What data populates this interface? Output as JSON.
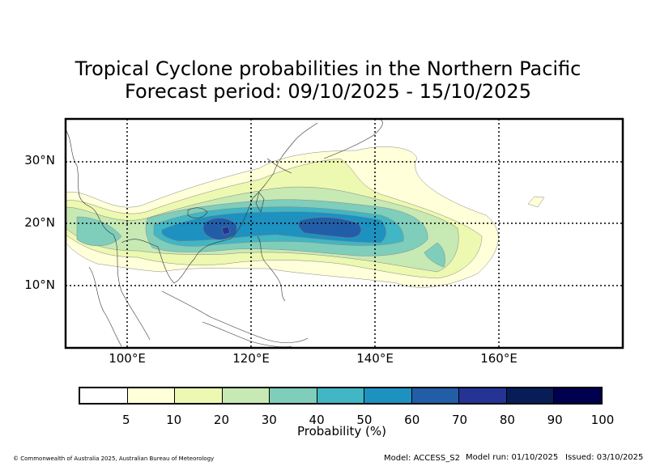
{
  "title": {
    "line1": "Tropical Cyclone probabilities in the Northern Pacific",
    "line2": "Forecast period: 09/10/2025 - 15/10/2025"
  },
  "map": {
    "lon_range": [
      90,
      180
    ],
    "lat_range": [
      0,
      37
    ],
    "lat_ticks": [
      {
        "value": 30,
        "label": "30°N"
      },
      {
        "value": 20,
        "label": "20°N"
      },
      {
        "value": 10,
        "label": "10°N"
      }
    ],
    "lon_ticks": [
      {
        "value": 100,
        "label": "100°E"
      },
      {
        "value": 120,
        "label": "120°E"
      },
      {
        "value": 140,
        "label": "140°E"
      },
      {
        "value": 160,
        "label": "160°E"
      }
    ],
    "probability_bands_percent": [
      5,
      10,
      20,
      30,
      40,
      50,
      60,
      70
    ]
  },
  "colorbar": {
    "label": "Probability (%)",
    "tick_labels": [
      "5",
      "10",
      "20",
      "30",
      "40",
      "50",
      "60",
      "70",
      "80",
      "90",
      "100"
    ],
    "colors": [
      "#ffffff",
      "#ffffd9",
      "#edf8b1",
      "#c7e9b4",
      "#7fcdbb",
      "#41b6c4",
      "#1d91c0",
      "#225ea8",
      "#253494",
      "#081d58",
      "#000050"
    ]
  },
  "footer": {
    "copyright": "© Commonwealth of Australia 2025, Australian Bureau of Meteorology",
    "model": "Model: ACCESS_S2",
    "model_run": "Model run: 01/10/2025",
    "issued": "Issued: 03/10/2025"
  }
}
